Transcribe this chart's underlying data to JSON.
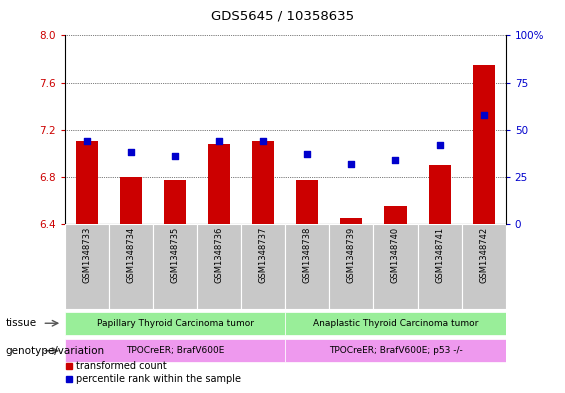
{
  "title": "GDS5645 / 10358635",
  "categories": [
    "GSM1348733",
    "GSM1348734",
    "GSM1348735",
    "GSM1348736",
    "GSM1348737",
    "GSM1348738",
    "GSM1348739",
    "GSM1348740",
    "GSM1348741",
    "GSM1348742"
  ],
  "bar_values": [
    7.1,
    6.8,
    6.77,
    7.08,
    7.1,
    6.77,
    6.45,
    6.55,
    6.9,
    7.75
  ],
  "bar_base": 6.4,
  "percentile_values": [
    44,
    38,
    36,
    44,
    44,
    37,
    32,
    34,
    42,
    58
  ],
  "ylim_left": [
    6.4,
    8.0
  ],
  "ylim_right": [
    0,
    100
  ],
  "yticks_left": [
    6.4,
    6.8,
    7.2,
    7.6,
    8.0
  ],
  "yticks_right": [
    0,
    25,
    50,
    75,
    100
  ],
  "bar_color": "#cc0000",
  "dot_color": "#0000cc",
  "tissue_labels": [
    {
      "text": "Papillary Thyroid Carcinoma tumor",
      "start": 0,
      "end": 5,
      "color": "#99ee99"
    },
    {
      "text": "Anaplastic Thyroid Carcinoma tumor",
      "start": 5,
      "end": 10,
      "color": "#99ee99"
    }
  ],
  "genotype_labels": [
    {
      "text": "TPOCreER; BrafV600E",
      "start": 0,
      "end": 5,
      "color": "#ee99ee"
    },
    {
      "text": "TPOCreER; BrafV600E; p53 -/-",
      "start": 5,
      "end": 10,
      "color": "#ee99ee"
    }
  ],
  "tissue_row_label": "tissue",
  "genotype_row_label": "genotype/variation",
  "legend_bar_label": "transformed count",
  "legend_dot_label": "percentile rank within the sample",
  "bg_color": "#ffffff",
  "bar_width": 0.5,
  "tick_label_color_left": "#cc0000",
  "tick_label_color_right": "#0000cc"
}
